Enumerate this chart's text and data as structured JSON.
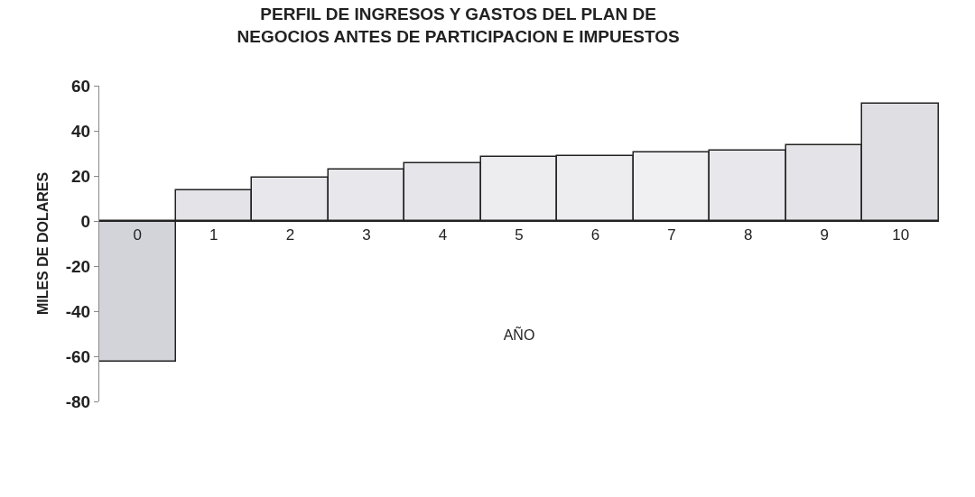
{
  "chart_data": {
    "type": "bar",
    "title": "PERFIL DE INGRESOS Y GASTOS DEL PLAN DE\nNEGOCIOS ANTES DE PARTICIPACION E IMPUESTOS",
    "xlabel": "AÑO",
    "ylabel": "MILES DE DOLARES",
    "categories": [
      "0",
      "1",
      "2",
      "3",
      "4",
      "5",
      "6",
      "7",
      "8",
      "9",
      "10"
    ],
    "values": [
      -62.5,
      13.7,
      19.2,
      23,
      25.8,
      28.4,
      28.9,
      30.3,
      31.4,
      33.7,
      52
    ],
    "colors": [
      "#d3d3da",
      "#e4e4e8",
      "#e8e8ec",
      "#e8e8ec",
      "#e6e6ea",
      "#ededf0",
      "#ededf0",
      "#f0f0f2",
      "#e8e8ec",
      "#e4e4e8",
      "#dedee3"
    ],
    "ylim": [
      -80,
      60
    ],
    "yticks": [
      -80,
      -60,
      -40,
      -20,
      0,
      20,
      40,
      60
    ]
  }
}
